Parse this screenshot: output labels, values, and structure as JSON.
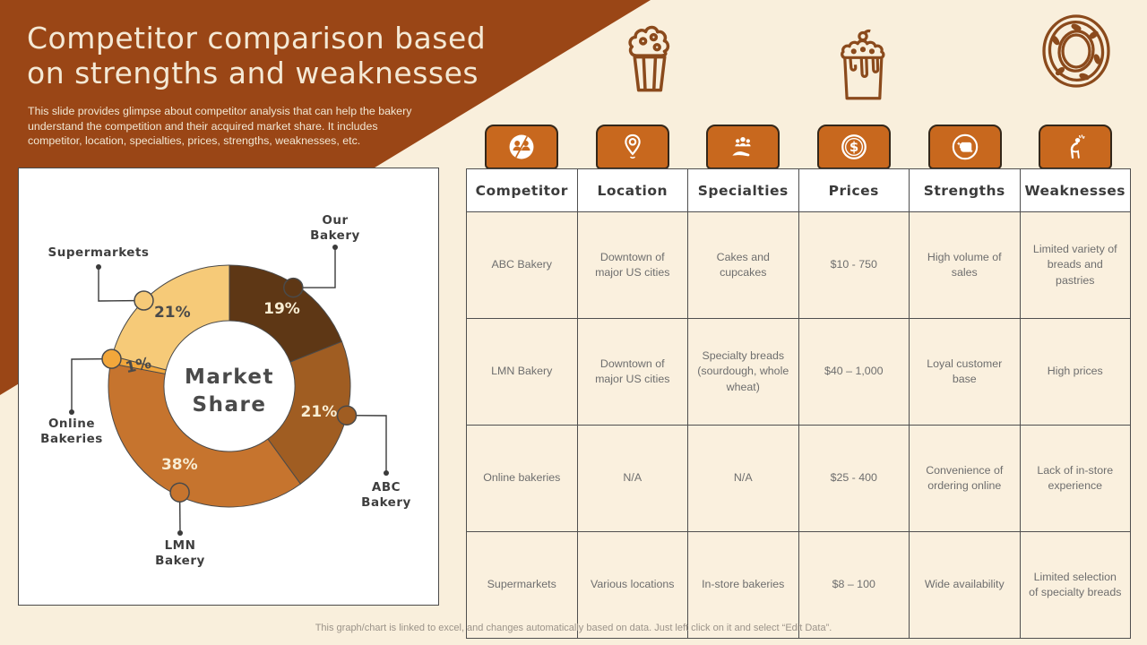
{
  "slide": {
    "title_line1": "Competitor comparison based",
    "title_line2": "on strengths and weaknesses",
    "subtitle": "This slide provides glimpse about competitor analysis that can help the bakery understand the competition and their acquired market share. It includes competitor, location, specialties, prices, strengths, weaknesses, etc.",
    "footer_note": "This graph/chart is linked to excel, and changes automatically based on data. Just left click on it and select “Edit Data”."
  },
  "colors": {
    "header_brown": "#9A4616",
    "slide_cream": "#F9EFDC",
    "tab_orange": "#C8681E",
    "cell_cream": "#FAF0DE",
    "border_dark": "#4A4A4A"
  },
  "decor_icons": [
    "cupcake-icon",
    "cake-icon",
    "donut-icon"
  ],
  "chart_data": {
    "type": "pie",
    "style": "donut",
    "title": "Market Share",
    "center_label_line1": "Market",
    "center_label_line2": "Share",
    "categories": [
      "Our Bakery",
      "ABC Bakery",
      "LMN Bakery",
      "Online Bakeries",
      "Supermarkets"
    ],
    "values": [
      19,
      21,
      38,
      1,
      21
    ],
    "unit": "%",
    "colors": [
      "#5E3715",
      "#A05D22",
      "#C6742E",
      "#F2A73B",
      "#F6CA78"
    ],
    "value_label_colors": [
      "#F8EDD3",
      "#F8EDD3",
      "#F8EDD3",
      "#4A4A4A",
      "#4A4A4A"
    ],
    "legend_position": "callout-labels"
  },
  "table": {
    "headers": [
      {
        "label": "Competitor",
        "icon": "competitor-icon"
      },
      {
        "label": "Location",
        "icon": "location-icon"
      },
      {
        "label": "Specialties",
        "icon": "specialties-icon"
      },
      {
        "label": "Prices",
        "icon": "prices-icon"
      },
      {
        "label": "Strengths",
        "icon": "strengths-icon"
      },
      {
        "label": "Weaknesses",
        "icon": "weaknesses-icon"
      }
    ],
    "rows": [
      [
        "ABC Bakery",
        "Downtown of major US cities",
        "Cakes and cupcakes",
        "$10 - 750",
        "High volume of sales",
        "Limited variety of breads and pastries"
      ],
      [
        "LMN Bakery",
        "Downtown of major US cities",
        "Specialty breads (sourdough, whole wheat)",
        "$40 – 1,000",
        "Loyal customer base",
        "High prices"
      ],
      [
        "Online bakeries",
        "N/A",
        "N/A",
        "$25 - 400",
        "Convenience of ordering online",
        "Lack of in-store experience"
      ],
      [
        "Supermarkets",
        "Various locations",
        "In-store bakeries",
        "$8 – 100",
        "Wide availability",
        "Limited selection of specialty breads"
      ]
    ]
  }
}
